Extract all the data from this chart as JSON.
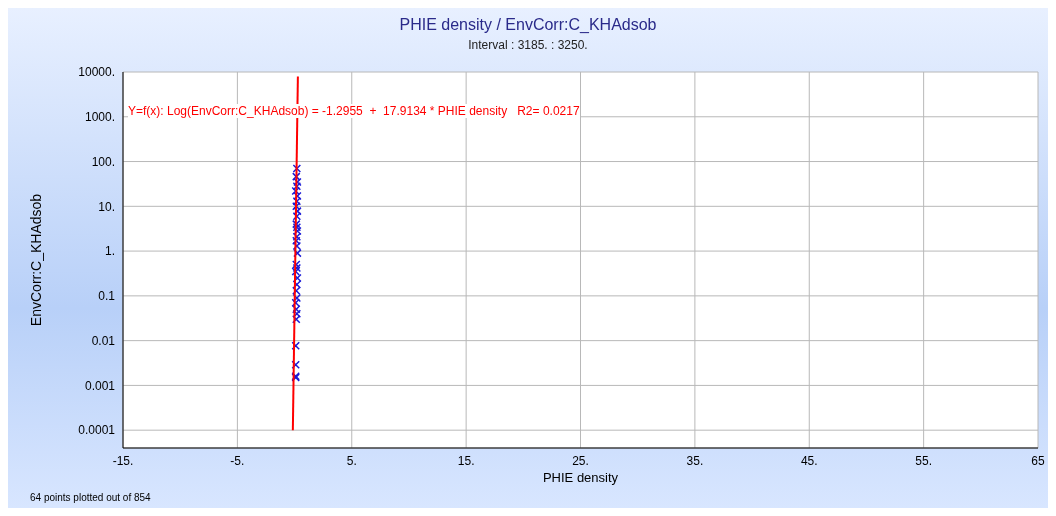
{
  "chart_data": {
    "type": "scatter",
    "title": "PHIE density / EnvCorr:C_KHAdsob",
    "subtitle": "Interval : 3185. : 3250.",
    "xlabel": "PHIE density",
    "ylabel": "EnvCorr:C_KHAdsob",
    "annotations": [
      "Y=f(x): Log(EnvCorr:C_KHAdsob) = -1.2955  +  17.9134 * PHIE density   R2= 0.0217",
      "64 points plotted out of 854"
    ],
    "log": "y",
    "grid": true,
    "marker": "cross",
    "xlim": [
      -15,
      65
    ],
    "xticks": [
      {
        "value": -15,
        "label": "-15."
      },
      {
        "value": -5,
        "label": "-5."
      },
      {
        "value": 5,
        "label": "5."
      },
      {
        "value": 15,
        "label": "15."
      },
      {
        "value": 25,
        "label": "25."
      },
      {
        "value": 35,
        "label": "35."
      },
      {
        "value": 45,
        "label": "45."
      },
      {
        "value": 55,
        "label": "55."
      },
      {
        "value": 65,
        "label": "65"
      }
    ],
    "ylim": [
      4e-05,
      10000
    ],
    "yticks": [
      {
        "value": 0.0001,
        "label": "0.0001"
      },
      {
        "value": 0.001,
        "label": "0.001"
      },
      {
        "value": 0.01,
        "label": "0.01"
      },
      {
        "value": 0.1,
        "label": "0.1"
      },
      {
        "value": 1,
        "label": "1."
      },
      {
        "value": 10,
        "label": "10."
      },
      {
        "value": 100,
        "label": "100."
      },
      {
        "value": 1000,
        "label": "1000."
      },
      {
        "value": 10000,
        "label": "10000."
      }
    ],
    "series": [
      {
        "color": "#1a1ad6",
        "x": [
          0.2,
          0.15,
          0.25,
          0.2,
          0.1,
          0.25,
          0.2,
          0.15,
          0.25,
          0.2,
          0.15,
          0.2,
          0.25,
          0.2,
          0.15,
          0.2,
          0.25,
          0.15,
          0.2,
          0.1,
          0.25,
          0.2,
          0.15,
          0.2,
          0.1,
          0.15,
          0.2,
          0.15,
          0.1,
          0.1,
          0.1,
          0.1
        ],
        "values": [
          70,
          46,
          35,
          28,
          22,
          17,
          13,
          10,
          7.8,
          6,
          4,
          3.4,
          2.8,
          2.1,
          1.7,
          1.3,
          0.9,
          0.5,
          0.42,
          0.35,
          0.25,
          0.18,
          0.13,
          0.09,
          0.07,
          0.05,
          0.04,
          0.03,
          0.0077,
          0.0029,
          0.0015,
          0.0016
        ]
      },
      {
        "type": "line",
        "color": "#ff0000",
        "marker": "none",
        "x": [
          -0.15,
          0.29
        ],
        "values": [
          0.0001,
          7900
        ]
      }
    ]
  }
}
